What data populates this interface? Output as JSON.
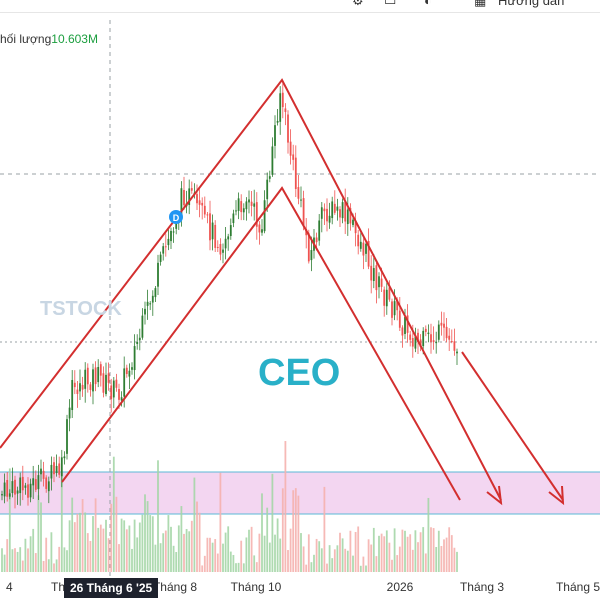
{
  "toolbar": {
    "icons": [
      "gear-icon",
      "camera-icon",
      "toggle-icon",
      "uk-flag-icon"
    ],
    "guide_label": "Hướng dẫn"
  },
  "legend": {
    "volume_label": "hối lượng",
    "volume_value": "10.603M"
  },
  "annotation": {
    "symbol": "CEO",
    "watermark": "TSTOCK",
    "marker_letter": "D"
  },
  "crosshair": {
    "date_label": "26 Tháng 6 '25"
  },
  "colors": {
    "up": "#26a69a",
    "up_fill": "#2e7d32",
    "down": "#ef5350",
    "channel": "#d32f2f",
    "zone_fill": "#f3d6f1",
    "zone_border": "#5bb8d6",
    "marker": "#2196f3",
    "volume_value": "#1b9e3e"
  },
  "chart_data": {
    "type": "candlestick",
    "x_ticks": [
      {
        "label": "4",
        "px": 6
      },
      {
        "label": "Th",
        "px": 58
      },
      {
        "label": "Tháng 8",
        "px": 175
      },
      {
        "label": "Tháng 10",
        "px": 256
      },
      {
        "label": "2026",
        "px": 400
      },
      {
        "label": "Tháng 3",
        "px": 482
      },
      {
        "label": "Tháng 5",
        "px": 578
      }
    ],
    "series": []
  }
}
